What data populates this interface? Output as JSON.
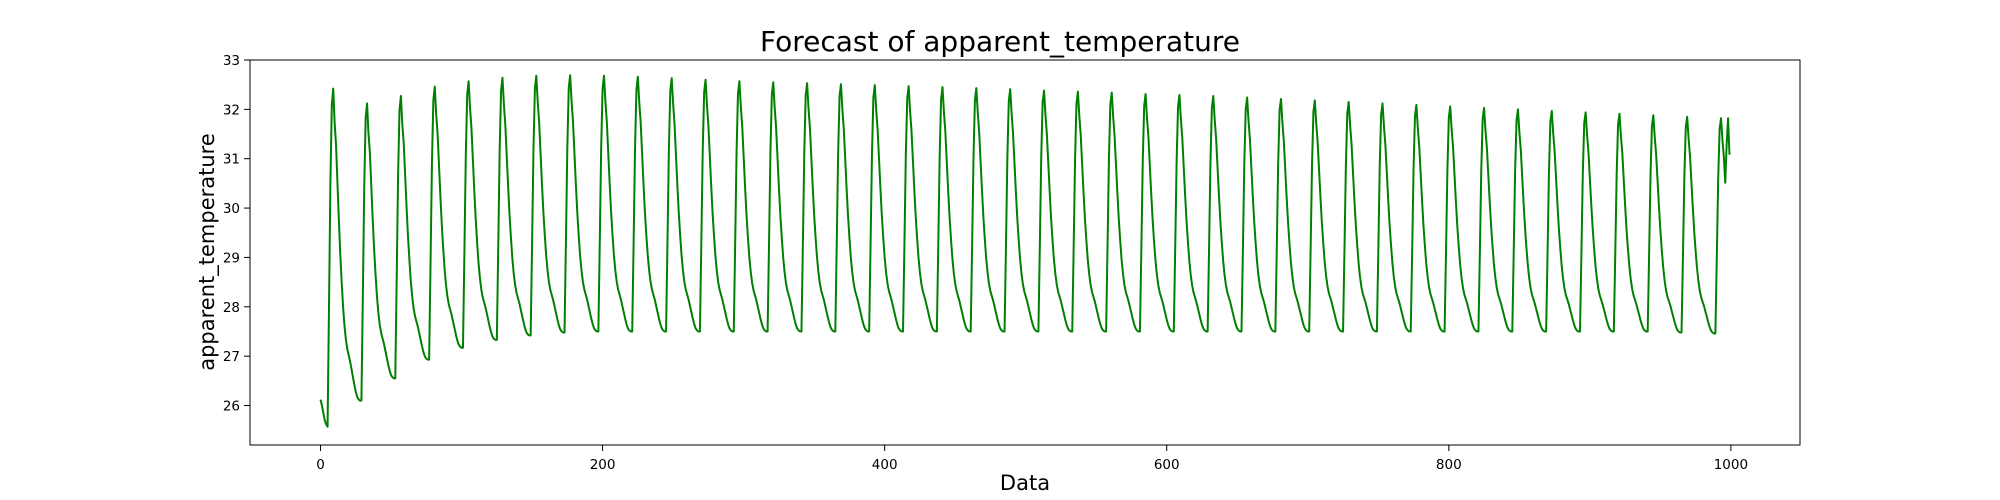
{
  "chart_data": {
    "type": "line",
    "title": "Forecast of apparent_temperature",
    "xlabel": "Data",
    "ylabel": "apparent_temperature",
    "xlim": [
      -50,
      1049
    ],
    "ylim": [
      25.2,
      33.0
    ],
    "xticks": [
      0,
      200,
      400,
      600,
      800,
      1000
    ],
    "yticks": [
      26,
      27,
      28,
      29,
      30,
      31,
      32,
      33
    ],
    "grid": false,
    "line_color": "#008000",
    "series": [
      {
        "cycle_length": 24,
        "points": 1000,
        "start_values": [
          26.12,
          26.0,
          25.85,
          25.7,
          25.62,
          25.57
        ],
        "peak_values": [
          32.42,
          32.12,
          32.27,
          32.46,
          32.57,
          32.64,
          32.68,
          32.69,
          32.68,
          32.66,
          32.63,
          32.6,
          32.57,
          32.55,
          32.53,
          32.51,
          32.49,
          32.47,
          32.45,
          32.43,
          32.41,
          32.38,
          32.36,
          32.34,
          32.31,
          32.29,
          32.27,
          32.24,
          32.21,
          32.18,
          32.15,
          32.12,
          32.09,
          32.06,
          32.03,
          32.0,
          31.97,
          31.94,
          31.91,
          31.88,
          31.85,
          31.82
        ],
        "trough_values": [
          25.57,
          26.1,
          26.55,
          26.93,
          27.17,
          27.33,
          27.42,
          27.48,
          27.5,
          27.5,
          27.5,
          27.5,
          27.5,
          27.5,
          27.5,
          27.5,
          27.5,
          27.5,
          27.5,
          27.5,
          27.5,
          27.5,
          27.5,
          27.5,
          27.5,
          27.5,
          27.5,
          27.5,
          27.5,
          27.5,
          27.5,
          27.5,
          27.5,
          27.5,
          27.5,
          27.5,
          27.5,
          27.5,
          27.5,
          27.5,
          27.48,
          27.46
        ],
        "end_value": 31.08
      }
    ]
  }
}
